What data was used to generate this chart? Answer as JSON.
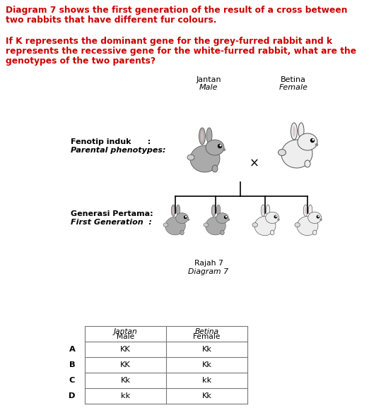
{
  "title_line1": "Diagram 7 shows the first generation of the result of a cross between",
  "title_line2": "two rabbits that have different fur colours.",
  "question_line1": "If K represents the dominant gene for the grey-furred rabbit and k",
  "question_line2": "represents the recessive gene for the white-furred rabbit, what are the",
  "question_line3": "genotypes of the two parents?",
  "label_jantan": "Jantan",
  "label_male": "Male",
  "label_betina": "Betina",
  "label_female": "Female",
  "label_fenotip": "Fenotip induk      :",
  "label_parental": "Parental phenotypes:",
  "label_generasi": "Generasi Pertama:",
  "label_first_gen": "First Generation  :",
  "label_rajah": "Rajah 7",
  "label_diagram": "Diagram 7",
  "table_header_jantan": "Jantan",
  "table_header_male": "Male",
  "table_header_betina": "Betina",
  "table_header_female": "Female",
  "rows": [
    {
      "letter": "A",
      "jantan": "KK",
      "betina": "Kk"
    },
    {
      "letter": "B",
      "jantan": "KK",
      "betina": "Kk"
    },
    {
      "letter": "C",
      "jantan": "Kk",
      "betina": "kk"
    },
    {
      "letter": "D",
      "jantan": "kk",
      "betina": "Kk"
    }
  ],
  "text_color_red": "#CC0000",
  "text_color_black": "#000000",
  "bg_color": "#FFFFFF",
  "title_fontsize": 8.8,
  "question_fontsize": 8.8,
  "label_fontsize": 8.0,
  "table_fontsize": 8.2,
  "caption_fontsize": 7.8
}
